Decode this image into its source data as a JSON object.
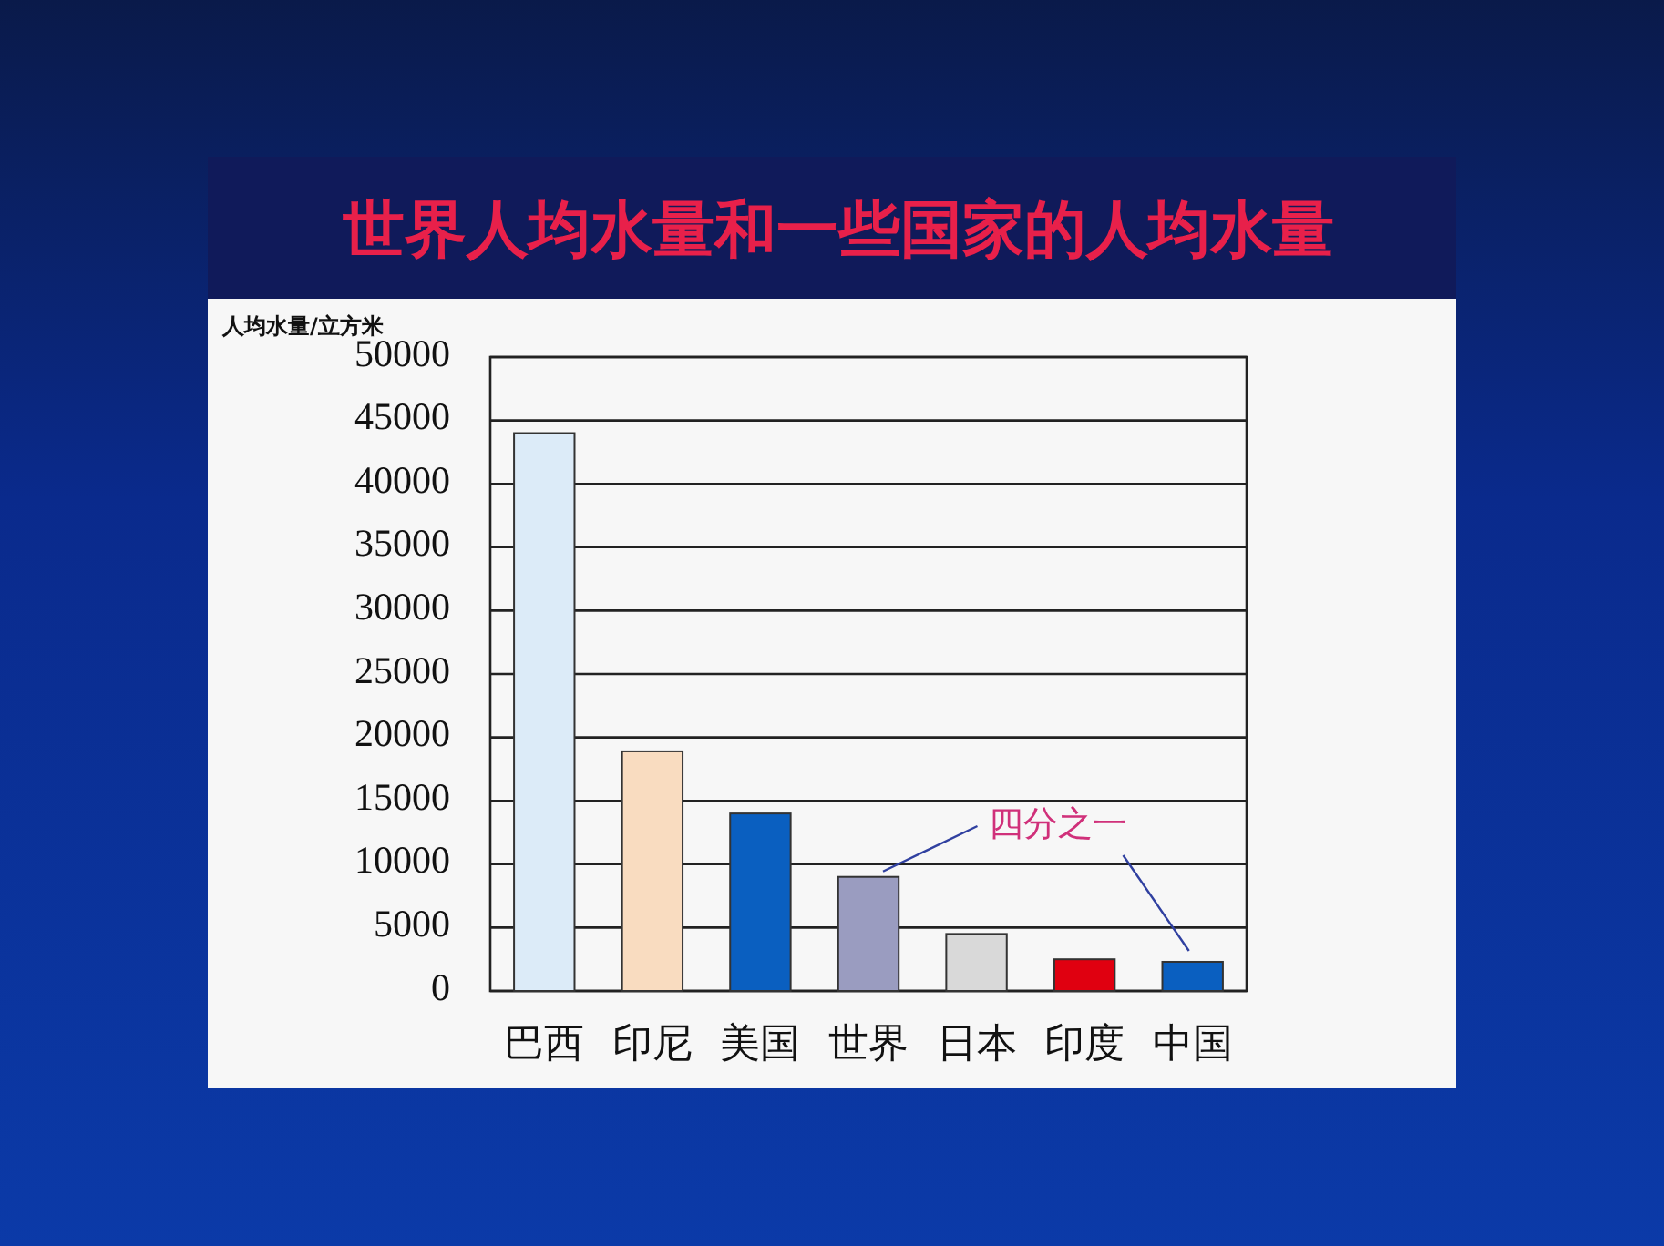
{
  "chart_data": {
    "type": "bar",
    "title": "世界人均水量和一些国家的人均水量",
    "ylabel": "人均水量/立方米",
    "categories": [
      "巴西",
      "印尼",
      "美国",
      "世界",
      "日本",
      "印度",
      "中国"
    ],
    "values": [
      44000,
      18900,
      14000,
      9000,
      4500,
      2500,
      2300
    ],
    "colors": [
      "#dcebf8",
      "#f9dcc0",
      "#0a5fc0",
      "#9a9cc0",
      "#d9d9d9",
      "#e00010",
      "#0a5fc0"
    ],
    "ylim": [
      0,
      50000
    ],
    "yticks": [
      0,
      5000,
      10000,
      15000,
      20000,
      25000,
      30000,
      35000,
      40000,
      45000,
      50000
    ],
    "grid": "y",
    "annotations": [
      {
        "text": "四分之一",
        "x": "世界",
        "y": 9000
      }
    ]
  }
}
